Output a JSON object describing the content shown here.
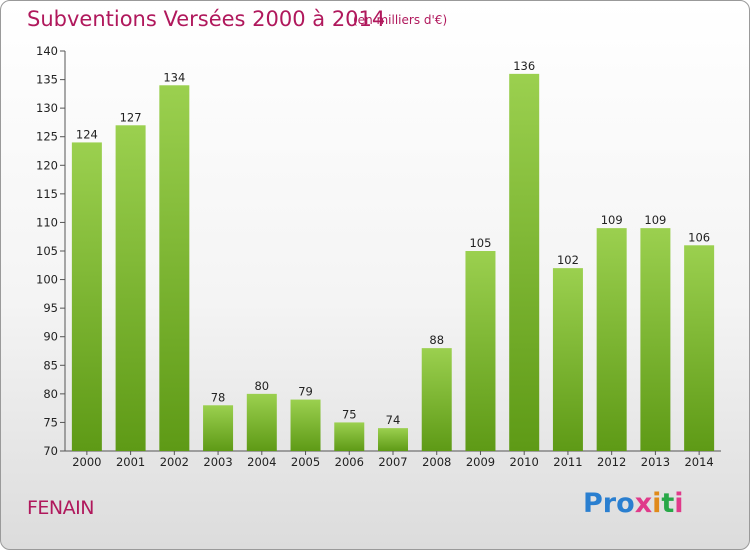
{
  "header": {
    "title": "Subventions Versées 2000 à 2014",
    "subtitle": "(en milliers d'€)"
  },
  "footer": {
    "commune": "FENAIN",
    "logo_text": "Proxiti"
  },
  "colors": {
    "title": "#b0185c",
    "bar_top": "#9bd04f",
    "bar_bottom": "#5e9a16",
    "logo": [
      "#2a7fd0",
      "#2a7fd0",
      "#2a7fd0",
      "#e03a8a",
      "#e08a1a",
      "#28a848",
      "#e03a8a"
    ]
  },
  "chart_data": {
    "type": "bar",
    "title": "Subventions Versées 2000 à 2014",
    "subtitle": "(en milliers d'€)",
    "categories": [
      "2000",
      "2001",
      "2002",
      "2003",
      "2004",
      "2005",
      "2006",
      "2007",
      "2008",
      "2009",
      "2010",
      "2011",
      "2012",
      "2013",
      "2014"
    ],
    "values": [
      124,
      127,
      134,
      78,
      80,
      79,
      75,
      74,
      88,
      105,
      136,
      102,
      109,
      109,
      106
    ],
    "ylim": [
      70,
      140
    ],
    "yticks": [
      70,
      75,
      80,
      85,
      90,
      95,
      100,
      105,
      110,
      115,
      120,
      125,
      130,
      135,
      140
    ],
    "xlabel": "",
    "ylabel": "",
    "grid": false,
    "data_labels": true
  }
}
